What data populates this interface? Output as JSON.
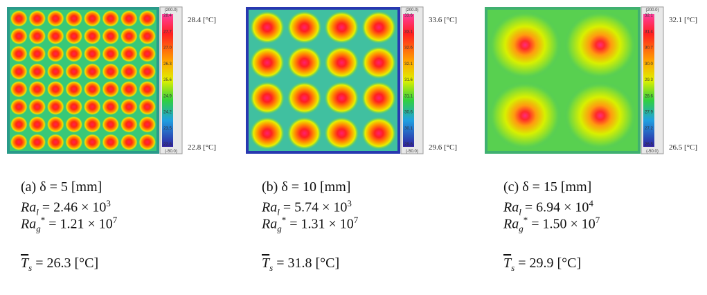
{
  "panels": [
    {
      "colorbar": {
        "top": "(200.0)",
        "bottom": "(-50.0)",
        "ticks": [
          "28.4",
          "27.7",
          "27.0",
          "26.3",
          "25.6",
          "24.9",
          "24.2",
          "23.5",
          "22.8"
        ]
      },
      "max_label": "28.4 [°C]",
      "min_label": "22.8 [°C]",
      "caption": {
        "title": "(a) δ = 5 [mm]",
        "ra_l": {
          "symbol": "Ra",
          "sub": "l",
          "text": " = 2.46 × 10",
          "exp": "3"
        },
        "ra_g": {
          "symbol": "Ra",
          "sub": "g",
          "sup": "*",
          "text": " = 1.21 × 10",
          "exp": "7"
        },
        "t_s": {
          "symbol": "T",
          "sub": "s",
          "text": " = 26.3 [°C]"
        }
      }
    },
    {
      "colorbar": {
        "top": "(200.0)",
        "bottom": "(-50.0)",
        "ticks": [
          "33.6",
          "33.1",
          "32.6",
          "32.1",
          "31.6",
          "31.1",
          "30.6",
          "30.1",
          "29.6"
        ]
      },
      "max_label": "33.6 [°C]",
      "min_label": "29.6 [°C]",
      "caption": {
        "title": "(b) δ = 10 [mm]",
        "ra_l": {
          "symbol": "Ra",
          "sub": "l",
          "text": " = 5.74 × 10",
          "exp": "3"
        },
        "ra_g": {
          "symbol": "Ra",
          "sub": "g",
          "sup": "*",
          "text": " = 1.31 × 10",
          "exp": "7"
        },
        "t_s": {
          "symbol": "T",
          "sub": "s",
          "text": " = 31.8 [°C]"
        }
      }
    },
    {
      "colorbar": {
        "top": "(200.0)",
        "bottom": "(-50.0)",
        "ticks": [
          "32.1",
          "31.4",
          "30.7",
          "30.0",
          "29.3",
          "28.6",
          "27.9",
          "27.2",
          "26.5"
        ]
      },
      "max_label": "32.1 [°C]",
      "min_label": "26.5 [°C]",
      "caption": {
        "title": "(c) δ = 15 [mm]",
        "ra_l": {
          "symbol": "Ra",
          "sub": "l",
          "text": " = 6.94 × 10",
          "exp": "4"
        },
        "ra_g": {
          "symbol": "Ra",
          "sub": "g",
          "sup": "*",
          "text": " = 1.50 × 10",
          "exp": "7"
        },
        "t_s": {
          "symbol": "T",
          "sub": "s",
          "text": " = 29.9 [°C]"
        }
      }
    }
  ]
}
